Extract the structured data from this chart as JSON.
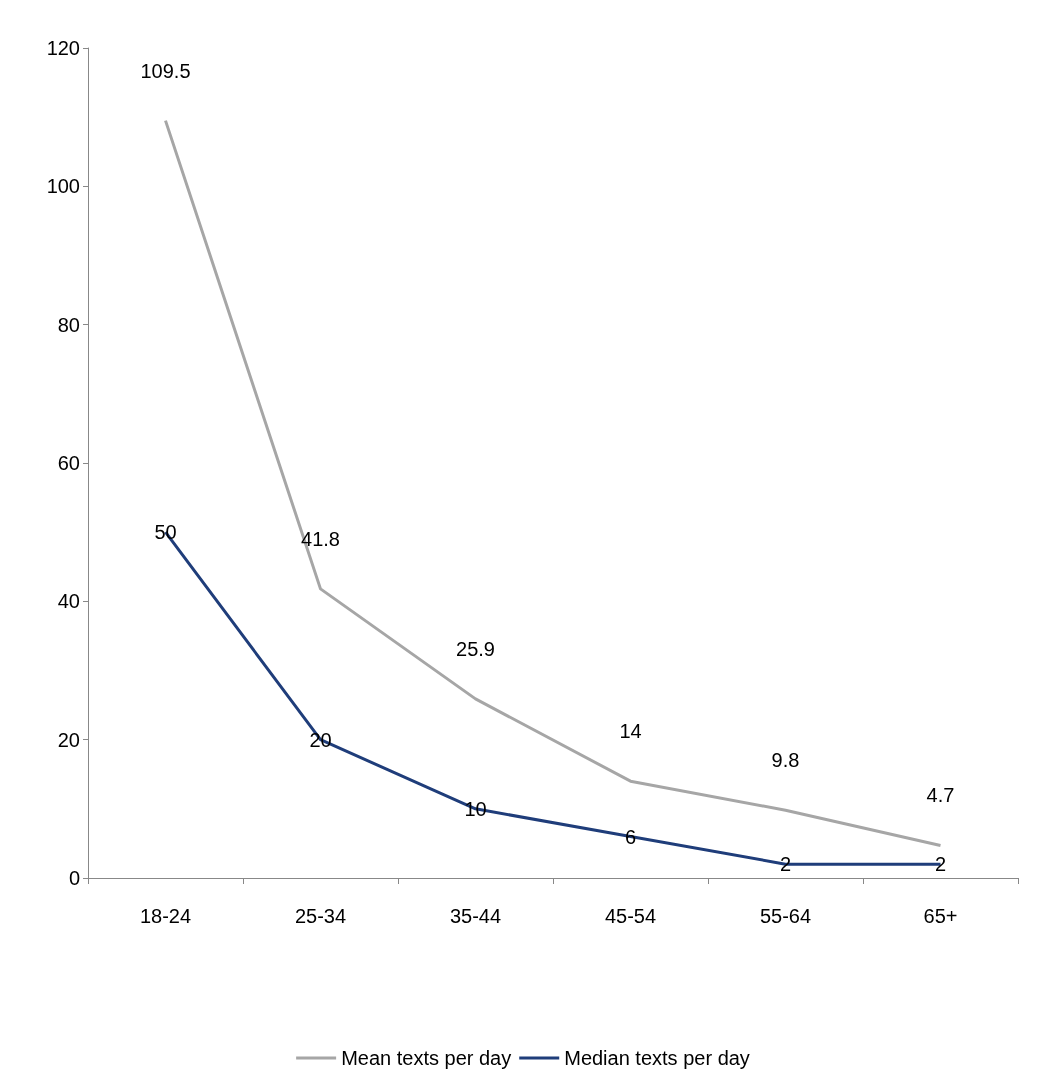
{
  "chart_data": {
    "type": "line",
    "categories": [
      "18-24",
      "25-34",
      "35-44",
      "45-54",
      "55-64",
      "65+"
    ],
    "series": [
      {
        "name": "Mean texts per day",
        "color": "#a6a6a6",
        "values": [
          109.5,
          41.8,
          25.9,
          14,
          9.8,
          4.7
        ]
      },
      {
        "name": "Median texts per day",
        "color": "#1f3d7a",
        "values": [
          50,
          20,
          10,
          6,
          2,
          2
        ]
      }
    ],
    "ylim": [
      0,
      120
    ],
    "yticks": [
      0,
      20,
      40,
      60,
      80,
      100,
      120
    ],
    "grid": false,
    "legend": "bottom",
    "data_labels": true
  }
}
